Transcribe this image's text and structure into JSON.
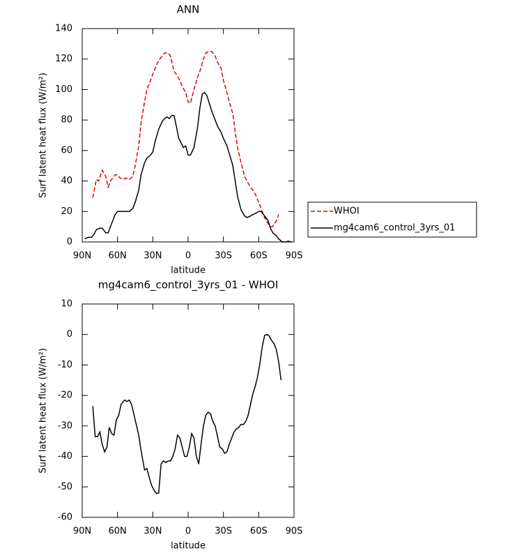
{
  "chart_data": [
    {
      "type": "line",
      "title": "ANN",
      "xlabel": "latitude",
      "ylabel": "Surf latent heat flux (W/m²)",
      "xlim": [
        90,
        -90
      ],
      "xticks": [
        {
          "value": 90,
          "label": "90N"
        },
        {
          "value": 60,
          "label": "60N"
        },
        {
          "value": 30,
          "label": "30N"
        },
        0,
        {
          "value": -30,
          "label": "30S"
        },
        {
          "value": -60,
          "label": "60S"
        },
        {
          "value": -90,
          "label": "90S"
        }
      ],
      "ylim": [
        0,
        140
      ],
      "yticks": [
        0,
        20,
        40,
        60,
        80,
        100,
        120,
        140
      ],
      "series": [
        {
          "name": "WHOI",
          "color": "#e00000",
          "dash": "dashed",
          "x": [
            81,
            78,
            76,
            73,
            70,
            68,
            66,
            64,
            62,
            60,
            58,
            55,
            53,
            50,
            47,
            45,
            42,
            40,
            37,
            35,
            32,
            30,
            27,
            25,
            22,
            20,
            17,
            15,
            12,
            10,
            7,
            5,
            2,
            0,
            -2,
            -5,
            -8,
            -10,
            -13,
            -15,
            -18,
            -20,
            -23,
            -25,
            -28,
            -30,
            -33,
            -35,
            -38,
            -40,
            -42,
            -45,
            -48,
            -50,
            -53,
            -55,
            -58,
            -60,
            -62,
            -65,
            -68,
            -70,
            -72,
            -75,
            -77
          ],
          "values": [
            29,
            41,
            40,
            47,
            43,
            36,
            40,
            42,
            44,
            44,
            42,
            41,
            42,
            41,
            43,
            50,
            63,
            78,
            92,
            100,
            106,
            110,
            116,
            119,
            122,
            124,
            124,
            122,
            112,
            110,
            106,
            102,
            98,
            92,
            91,
            100,
            108,
            112,
            120,
            124,
            125,
            125,
            122,
            118,
            114,
            106,
            98,
            92,
            84,
            72,
            62,
            52,
            43,
            40,
            36,
            34,
            30,
            26,
            22,
            16,
            12,
            10,
            10,
            14,
            18
          ]
        },
        {
          "name": "mg4cam6_control_3yrs_01",
          "color": "#000000",
          "dash": "solid",
          "x": [
            88,
            85,
            82,
            80,
            78,
            75,
            73,
            70,
            68,
            66,
            64,
            62,
            60,
            57,
            55,
            52,
            50,
            47,
            45,
            42,
            40,
            37,
            35,
            32,
            30,
            28,
            25,
            22,
            20,
            18,
            16,
            14,
            12,
            10,
            8,
            6,
            4,
            2,
            0,
            -2,
            -5,
            -8,
            -10,
            -12,
            -14,
            -16,
            -18,
            -20,
            -23,
            -25,
            -28,
            -30,
            -33,
            -35,
            -38,
            -40,
            -42,
            -45,
            -48,
            -50,
            -53,
            -55,
            -58,
            -60,
            -62,
            -65,
            -68,
            -70,
            -72,
            -75,
            -77,
            -80,
            -83,
            -85,
            -88
          ],
          "values": [
            2,
            3,
            3,
            5,
            8,
            9,
            9,
            6,
            6,
            10,
            14,
            18,
            20,
            20,
            20,
            20,
            20,
            22,
            26,
            34,
            44,
            52,
            55,
            57,
            59,
            66,
            74,
            79,
            81,
            82,
            81,
            83,
            83,
            76,
            68,
            65,
            62,
            63,
            57,
            57,
            62,
            75,
            88,
            97,
            98,
            96,
            91,
            86,
            80,
            76,
            72,
            68,
            63,
            58,
            50,
            40,
            30,
            21,
            17,
            16,
            17,
            18,
            19,
            20,
            20,
            17,
            14,
            9,
            6,
            4,
            2,
            0,
            0,
            0.5,
            0
          ]
        }
      ]
    },
    {
      "type": "line",
      "title": "mg4cam6_control_3yrs_01 - WHOI",
      "xlabel": "latitude",
      "ylabel": "Surf latent heat flux (W/m²)",
      "xlim": [
        90,
        -90
      ],
      "xticks": [
        {
          "value": 90,
          "label": "90N"
        },
        {
          "value": 60,
          "label": "60N"
        },
        {
          "value": 30,
          "label": "30N"
        },
        0,
        {
          "value": -30,
          "label": "30S"
        },
        {
          "value": -60,
          "label": "60S"
        },
        {
          "value": -90,
          "label": "90S"
        }
      ],
      "ylim": [
        -60,
        10
      ],
      "yticks": [
        -60,
        -50,
        -40,
        -30,
        -20,
        -10,
        0,
        10
      ],
      "series": [
        {
          "color": "#000000",
          "dash": "solid",
          "x": [
            81,
            79,
            77,
            75,
            73,
            71,
            69,
            67,
            65,
            63,
            61,
            59,
            57,
            54,
            52,
            50,
            48,
            45,
            42,
            40,
            37,
            35,
            33,
            31,
            29,
            27,
            25,
            23,
            21,
            19,
            17,
            15,
            13,
            11,
            9,
            7,
            5,
            3,
            1,
            -1,
            -3,
            -5,
            -7,
            -9,
            -11,
            -13,
            -15,
            -17,
            -19,
            -21,
            -23,
            -25,
            -27,
            -29,
            -31,
            -33,
            -35,
            -37,
            -39,
            -41,
            -43,
            -45,
            -47,
            -49,
            -51,
            -53,
            -55,
            -57,
            -59,
            -61,
            -63,
            -65,
            -67,
            -69,
            -71,
            -73,
            -75,
            -77,
            -79
          ],
          "values": [
            -23.5,
            -33.5,
            -33.5,
            -32,
            -36,
            -38.5,
            -37,
            -30.5,
            -32.5,
            -33,
            -28,
            -26.5,
            -23,
            -21.5,
            -22,
            -21.5,
            -23,
            -28,
            -33,
            -38,
            -44.5,
            -44,
            -47,
            -49.5,
            -51,
            -52.2,
            -52,
            -42.5,
            -41.5,
            -42,
            -41.5,
            -41.5,
            -40,
            -37.5,
            -33,
            -34,
            -37,
            -40,
            -40,
            -37,
            -32.5,
            -34,
            -40,
            -42.5,
            -36,
            -30,
            -26.5,
            -25.5,
            -26,
            -28.5,
            -30,
            -33.5,
            -37,
            -37.5,
            -39,
            -38.5,
            -36,
            -34,
            -32,
            -31,
            -30.5,
            -29.5,
            -29.5,
            -28.5,
            -26.5,
            -23,
            -19.5,
            -17,
            -14,
            -9.5,
            -4,
            -0.3,
            0,
            -0.5,
            -2,
            -3,
            -5,
            -9,
            -15
          ]
        }
      ]
    }
  ]
}
